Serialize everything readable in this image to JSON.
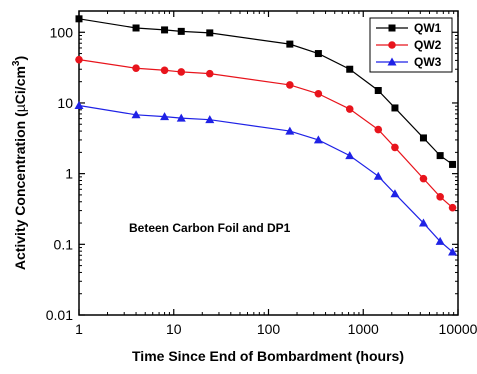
{
  "chart_data": {
    "type": "line",
    "xlabel": "Time Since End of Bombardment (hours)",
    "ylabel_main": "Activity Concentration (",
    "ylabel_mu": "µ",
    "ylabel_tail": "Ci/cm",
    "ylabel_sup": "3",
    "ylabel_close": ")",
    "xscale": "log",
    "yscale": "log",
    "xlim": [
      1,
      10000
    ],
    "ylim": [
      0.01,
      200
    ],
    "x_ticks": [
      1,
      10,
      100,
      1000,
      10000
    ],
    "x_tick_labels": [
      "1",
      "10",
      "100",
      "1000",
      "10000"
    ],
    "y_ticks": [
      0.01,
      0.1,
      1,
      10,
      100
    ],
    "y_tick_labels": [
      "0.01",
      "0.1",
      "1",
      "10",
      "100"
    ],
    "grid": false,
    "legend_position": "top-right",
    "annotation": "Beteen Carbon Foil and DP1",
    "x": [
      1,
      4,
      8,
      12,
      24,
      168,
      336,
      720,
      1440,
      2160,
      4320,
      6480,
      8760
    ],
    "series": [
      {
        "name": "QW1",
        "color": "#000000",
        "marker": "square",
        "values": [
          155,
          115,
          108,
          103,
          98,
          68,
          50,
          30,
          15,
          8.5,
          3.2,
          1.8,
          1.35
        ]
      },
      {
        "name": "QW2",
        "color": "#e8141c",
        "marker": "circle",
        "values": [
          41,
          31,
          29,
          27.5,
          26,
          18,
          13.5,
          8.2,
          4.2,
          2.35,
          0.85,
          0.47,
          0.33
        ]
      },
      {
        "name": "QW3",
        "color": "#1f22e6",
        "marker": "triangle",
        "values": [
          9.2,
          6.8,
          6.4,
          6.1,
          5.8,
          4.0,
          3.0,
          1.8,
          0.92,
          0.52,
          0.2,
          0.11,
          0.078
        ]
      }
    ]
  }
}
